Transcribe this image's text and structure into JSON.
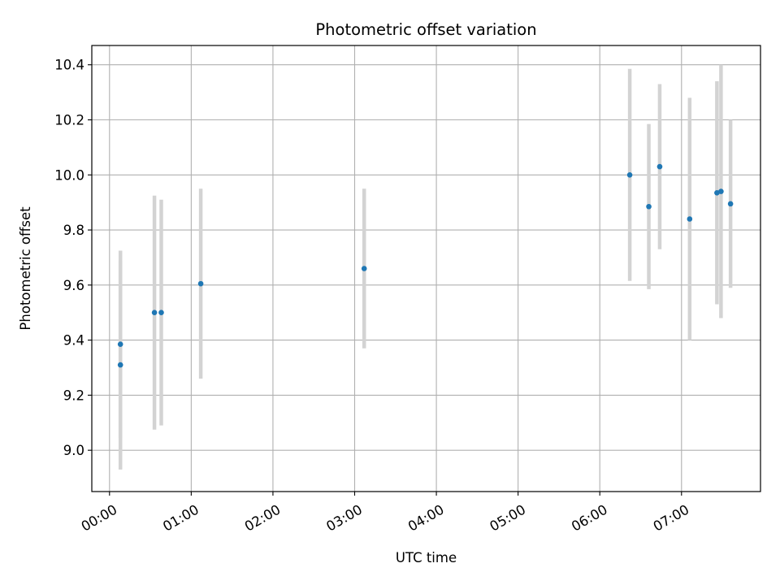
{
  "chart_data": {
    "type": "scatter",
    "title": "Photometric offset variation",
    "xlabel": "UTC time",
    "ylabel": "Photometric offset",
    "x_unit": "hours",
    "xlim": [
      "-00:13",
      "07:58"
    ],
    "ylim": [
      8.85,
      10.47
    ],
    "x_ticks": [
      "00:00",
      "01:00",
      "02:00",
      "03:00",
      "04:00",
      "05:00",
      "06:00",
      "07:00"
    ],
    "y_ticks": [
      9.0,
      9.2,
      9.4,
      9.6,
      9.8,
      10.0,
      10.2,
      10.4
    ],
    "y_tick_labels": [
      "9.0",
      "9.2",
      "9.4",
      "9.6",
      "9.8",
      "10.0",
      "10.2",
      "10.4"
    ],
    "grid": true,
    "marker_color": "#1f77b4",
    "errorbar_color": "#d3d3d3",
    "points": [
      {
        "time": "00:08",
        "y": 9.385,
        "yerr": 0.34
      },
      {
        "time": "00:08",
        "y": 9.31,
        "yerr": 0.38
      },
      {
        "time": "00:33",
        "y": 9.5,
        "yerr": 0.425
      },
      {
        "time": "00:38",
        "y": 9.5,
        "yerr": 0.41
      },
      {
        "time": "01:07",
        "y": 9.605,
        "yerr": 0.345
      },
      {
        "time": "03:07",
        "y": 9.66,
        "yerr": 0.29
      },
      {
        "time": "06:22",
        "y": 10.0,
        "yerr": 0.385
      },
      {
        "time": "06:36",
        "y": 9.885,
        "yerr": 0.3
      },
      {
        "time": "06:44",
        "y": 10.03,
        "yerr": 0.3
      },
      {
        "time": "07:06",
        "y": 9.84,
        "yerr": 0.44
      },
      {
        "time": "07:26",
        "y": 9.935,
        "yerr": 0.405
      },
      {
        "time": "07:29",
        "y": 9.94,
        "yerr": 0.46
      },
      {
        "time": "07:36",
        "y": 9.895,
        "yerr": 0.305
      }
    ]
  }
}
